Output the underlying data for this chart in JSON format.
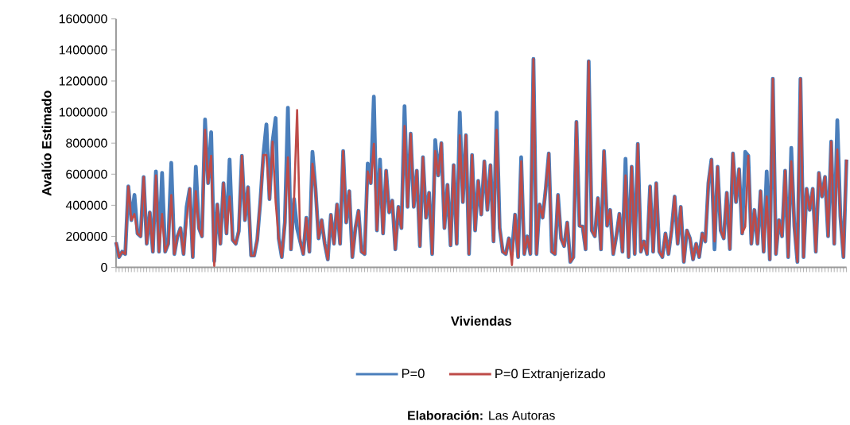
{
  "chart_data": {
    "type": "line",
    "ylabel": "Avalúo Estimado",
    "xlabel": "Viviendas",
    "annotations": [
      "**Elaboración:** Las Autoras"
    ],
    "categories": [
      null,
      null,
      null,
      null,
      null,
      null,
      null,
      null,
      null,
      null,
      null,
      null,
      null,
      null,
      null,
      null,
      null,
      null,
      null,
      null,
      null,
      null,
      null,
      null,
      null,
      null,
      null,
      null,
      null,
      null,
      null,
      null,
      null,
      null,
      null,
      null,
      null,
      null,
      null,
      null,
      null,
      null,
      null,
      null,
      null,
      null,
      null,
      null,
      null,
      null,
      null,
      null,
      null,
      null,
      null,
      null,
      null,
      null,
      null,
      null,
      null,
      null,
      null,
      null,
      null,
      null,
      null,
      null,
      null,
      null,
      null,
      null,
      null,
      null,
      null,
      null,
      null,
      null,
      null,
      null,
      null,
      null,
      null,
      null,
      null,
      null,
      null,
      null,
      null,
      null,
      null,
      null,
      null,
      null,
      null,
      null,
      null,
      null,
      null,
      null,
      null,
      null,
      null,
      null,
      null,
      null,
      null,
      null,
      null,
      null,
      null,
      null,
      null,
      null,
      null,
      null,
      null,
      null,
      null,
      null,
      null,
      null,
      null,
      null,
      null,
      null,
      null,
      null,
      null,
      null,
      null,
      null,
      null,
      null,
      null,
      null,
      null,
      null,
      null,
      null,
      null,
      null,
      null,
      null,
      null,
      null,
      null,
      null,
      null,
      null,
      null,
      null,
      null,
      null,
      null,
      null,
      null,
      null,
      null,
      null,
      null,
      null,
      null,
      null,
      null,
      null,
      null,
      null,
      null,
      null,
      null,
      null,
      null,
      null,
      null,
      null,
      null,
      null,
      null,
      null,
      null,
      null,
      null,
      null,
      null,
      null,
      null,
      null,
      null,
      null,
      null,
      null,
      null,
      null,
      null,
      null,
      null,
      null,
      null,
      null,
      null,
      null,
      null,
      null,
      null,
      null,
      null,
      null,
      null,
      null,
      null,
      null,
      null,
      null,
      null,
      null,
      null,
      null,
      null,
      null,
      null,
      null,
      null,
      null,
      null,
      null,
      null,
      null,
      null,
      null,
      null,
      null,
      null,
      null,
      null,
      null,
      null,
      null,
      null
    ],
    "series": [
      {
        "name": "P=0",
        "color": "#4a7ebb",
        "values": [
          162000,
          66000,
          101000,
          86000,
          522000,
          304000,
          466000,
          218000,
          200000,
          582000,
          152000,
          354000,
          101000,
          618000,
          101000,
          608000,
          101000,
          152000,
          673000,
          86000,
          200000,
          253000,
          86000,
          390000,
          506000,
          66000,
          648000,
          253000,
          200000,
          952000,
          542000,
          871000,
          40000,
          405000,
          152000,
          542000,
          218000,
          694000,
          177000,
          152000,
          233000,
          719000,
          304000,
          516000,
          76000,
          76000,
          177000,
          420000,
          724000,
          921000,
          440000,
          810000,
          962000,
          187000,
          66000,
          289000,
          1028000,
          116000,
          440000,
          250000,
          167000,
          86000,
          319000,
          101000,
          744000,
          506000,
          187000,
          304000,
          152000,
          51000,
          339000,
          152000,
          405000,
          152000,
          749000,
          289000,
          491000,
          66000,
          253000,
          365000,
          101000,
          86000,
          668000,
          542000,
          1099000,
          238000,
          694000,
          218000,
          623000,
          354000,
          430000,
          116000,
          390000,
          253000,
          1038000,
          390000,
          861000,
          390000,
          623000,
          137000,
          709000,
          319000,
          481000,
          86000,
          820000,
          592000,
          800000,
          253000,
          532000,
          142000,
          658000,
          152000,
          997000,
          420000,
          851000,
          86000,
          724000,
          238000,
          557000,
          340000,
          683000,
          370000,
          658000,
          167000,
          997000,
          253000,
          101000,
          86000,
          187000,
          100000,
          340000,
          66000,
          709000,
          86000,
          200000,
          86000,
          1342000,
          86000,
          405000,
          320000,
          506000,
          734000,
          101000,
          86000,
          466000,
          187000,
          137000,
          289000,
          35000,
          66000,
          937000,
          268000,
          263000,
          116000,
          1327000,
          238000,
          200000,
          446000,
          116000,
          749000,
          268000,
          370000,
          86000,
          200000,
          345000,
          101000,
          699000,
          66000,
          648000,
          86000,
          795000,
          101000,
          167000,
          86000,
          522000,
          101000,
          542000,
          101000,
          66000,
          218000,
          86000,
          238000,
          456000,
          152000,
          390000,
          35000,
          238000,
          187000,
          51000,
          152000,
          66000,
          218000,
          167000,
          542000,
          694000,
          116000,
          648000,
          238000,
          187000,
          481000,
          118000,
          734000,
          420000,
          633000,
          218000,
          744000,
          719000,
          152000,
          370000,
          152000,
          491000,
          101000,
          618000,
          51000,
          1215000,
          86000,
          304000,
          200000,
          623000,
          66000,
          770000,
          268000,
          35000,
          1215000,
          66000,
          506000,
          370000,
          506000,
          101000,
          608000,
          456000,
          583000,
          200000,
          810000,
          152000,
          947000,
          329000,
          66000,
          694000
        ]
      },
      {
        "name": "P=0 Extranjerizado",
        "color": "#be4b48",
        "values": [
          162000,
          66000,
          101000,
          86000,
          522000,
          304000,
          344000,
          218000,
          200000,
          582000,
          152000,
          354000,
          101000,
          592000,
          101000,
          344000,
          101000,
          152000,
          466000,
          86000,
          200000,
          253000,
          86000,
          300000,
          506000,
          66000,
          491000,
          253000,
          200000,
          886000,
          542000,
          719000,
          10000,
          405000,
          152000,
          542000,
          218000,
          456000,
          177000,
          152000,
          233000,
          719000,
          304000,
          516000,
          76000,
          76000,
          177000,
          420000,
          724000,
          724000,
          440000,
          810000,
          420000,
          187000,
          66000,
          289000,
          709000,
          116000,
          440000,
          1013000,
          167000,
          86000,
          319000,
          101000,
          668000,
          506000,
          187000,
          304000,
          152000,
          51000,
          339000,
          152000,
          405000,
          152000,
          749000,
          289000,
          491000,
          66000,
          253000,
          365000,
          101000,
          86000,
          618000,
          542000,
          795000,
          238000,
          633000,
          218000,
          623000,
          354000,
          430000,
          116000,
          390000,
          253000,
          911000,
          390000,
          861000,
          390000,
          623000,
          137000,
          709000,
          319000,
          481000,
          86000,
          749000,
          592000,
          800000,
          253000,
          532000,
          142000,
          658000,
          152000,
          851000,
          420000,
          851000,
          86000,
          724000,
          238000,
          557000,
          340000,
          683000,
          370000,
          658000,
          167000,
          886000,
          253000,
          101000,
          86000,
          187000,
          15000,
          340000,
          66000,
          683000,
          86000,
          200000,
          86000,
          1342000,
          86000,
          405000,
          320000,
          506000,
          734000,
          101000,
          86000,
          466000,
          187000,
          137000,
          289000,
          35000,
          66000,
          937000,
          268000,
          263000,
          116000,
          1327000,
          238000,
          200000,
          446000,
          116000,
          749000,
          268000,
          370000,
          86000,
          200000,
          345000,
          101000,
          592000,
          66000,
          648000,
          86000,
          795000,
          101000,
          167000,
          86000,
          522000,
          101000,
          542000,
          101000,
          66000,
          218000,
          86000,
          238000,
          456000,
          152000,
          390000,
          35000,
          238000,
          187000,
          51000,
          152000,
          66000,
          218000,
          167000,
          542000,
          694000,
          167000,
          648000,
          238000,
          187000,
          481000,
          118000,
          734000,
          420000,
          633000,
          218000,
          263000,
          719000,
          152000,
          370000,
          152000,
          491000,
          101000,
          456000,
          51000,
          1215000,
          86000,
          304000,
          200000,
          623000,
          66000,
          683000,
          268000,
          35000,
          1215000,
          66000,
          506000,
          370000,
          506000,
          101000,
          608000,
          456000,
          583000,
          200000,
          810000,
          152000,
          759000,
          329000,
          66000,
          694000
        ]
      }
    ],
    "ylim": [
      0,
      1600000
    ],
    "yticks": [
      0,
      200000,
      400000,
      600000,
      800000,
      1000000,
      1200000,
      1400000,
      1600000
    ],
    "tick_labels": "y",
    "legend": "bottom",
    "marker": "none",
    "line_style": "solid"
  }
}
